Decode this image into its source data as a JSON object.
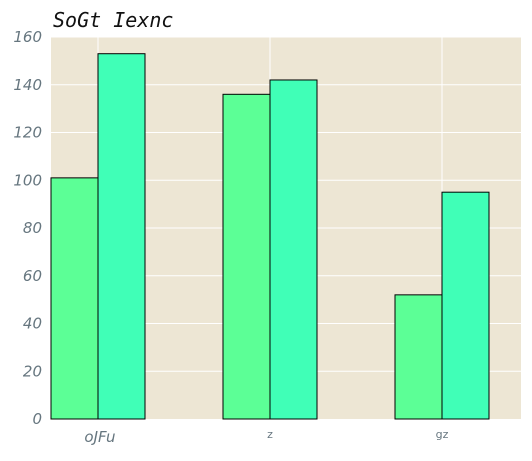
{
  "chart_data": {
    "type": "bar",
    "title": "SoGt Iexnc",
    "xlabel": "",
    "ylabel": "",
    "categories": [
      "oJFu",
      "z",
      "gz"
    ],
    "series": [
      {
        "values": [
          101,
          136,
          52
        ],
        "color": "#5cff96"
      },
      {
        "values": [
          153,
          142,
          95
        ],
        "color": "#40ffb7"
      }
    ],
    "ylim": [
      0,
      160
    ],
    "yticks": [
      0,
      20,
      40,
      60,
      80,
      100,
      120,
      140,
      160
    ],
    "grid": true,
    "legend": "none",
    "colors": {
      "plot_background": "#ede6d4",
      "grid": "#ffffff",
      "bar_edge": "#000000",
      "tick_label": "#66767f",
      "title": "#111111"
    }
  }
}
